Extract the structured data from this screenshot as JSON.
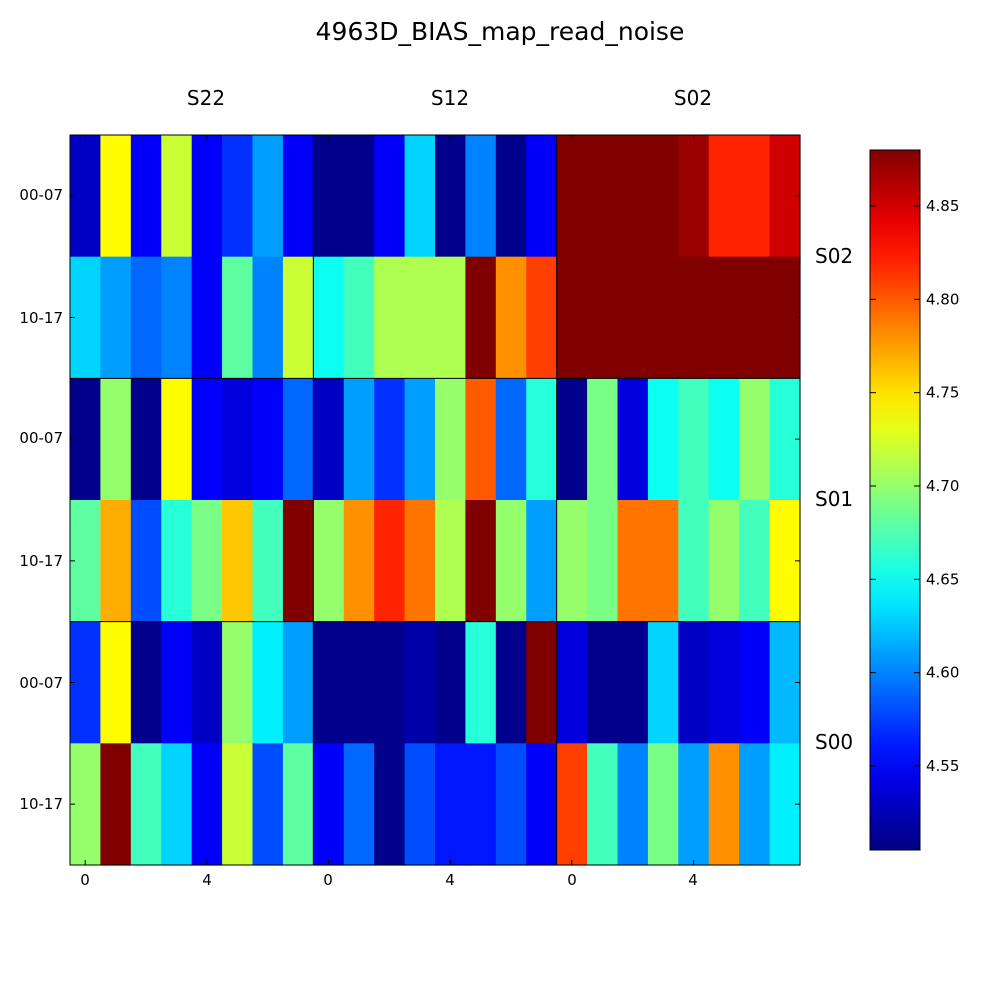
{
  "chart_data": {
    "type": "heatmap",
    "title": "4963D_BIAS_map_read_noise",
    "column_labels": [
      "S22",
      "S12",
      "S02"
    ],
    "row_labels": [
      "S02",
      "S01",
      "S00"
    ],
    "y_tick_labels": [
      "00-07",
      "10-17",
      "00-07",
      "10-17",
      "00-07",
      "10-17"
    ],
    "x_tick_labels": [
      "0",
      "4",
      "0",
      "4",
      "0",
      "4"
    ],
    "colorbar": {
      "colormap": "jet",
      "range": [
        4.505,
        4.88
      ],
      "ticks": [
        4.55,
        4.6,
        4.65,
        4.7,
        4.75,
        4.8,
        4.85
      ],
      "tick_labels": [
        "4.55",
        "4.60",
        "4.65",
        "4.70",
        "4.75",
        "4.80",
        "4.85"
      ]
    },
    "values": [
      [
        4.53,
        4.74,
        4.55,
        4.72,
        4.55,
        4.57,
        4.61,
        4.55,
        4.51,
        4.51,
        4.55,
        4.63,
        4.51,
        4.6,
        4.51,
        4.55,
        4.88,
        4.88,
        4.88,
        4.88,
        4.87,
        4.82,
        4.82,
        4.85
      ],
      [
        4.63,
        4.61,
        4.59,
        4.6,
        4.55,
        4.68,
        4.6,
        4.72,
        4.65,
        4.67,
        4.71,
        4.71,
        4.71,
        4.88,
        4.78,
        4.81,
        4.88,
        4.88,
        4.88,
        4.88,
        4.88,
        4.88,
        4.88,
        4.88
      ],
      [
        4.51,
        4.7,
        4.51,
        4.74,
        4.55,
        4.54,
        4.55,
        4.59,
        4.53,
        4.61,
        4.57,
        4.61,
        4.7,
        4.8,
        4.59,
        4.66,
        4.51,
        4.69,
        4.54,
        4.65,
        4.67,
        4.65,
        4.7,
        4.66
      ],
      [
        4.68,
        4.77,
        4.58,
        4.66,
        4.69,
        4.76,
        4.67,
        4.88,
        4.7,
        4.78,
        4.82,
        4.79,
        4.71,
        4.88,
        4.7,
        4.61,
        4.7,
        4.69,
        4.79,
        4.79,
        4.67,
        4.7,
        4.67,
        4.74
      ],
      [
        4.57,
        4.74,
        4.51,
        4.55,
        4.53,
        4.7,
        4.64,
        4.61,
        4.51,
        4.51,
        4.51,
        4.52,
        4.51,
        4.66,
        4.51,
        4.88,
        4.54,
        4.51,
        4.51,
        4.63,
        4.53,
        4.54,
        4.55,
        4.62
      ],
      [
        4.7,
        4.88,
        4.67,
        4.63,
        4.55,
        4.72,
        4.58,
        4.68,
        4.55,
        4.59,
        4.51,
        4.58,
        4.56,
        4.56,
        4.58,
        4.55,
        4.81,
        4.67,
        4.6,
        4.69,
        4.61,
        4.78,
        4.61,
        4.64
      ]
    ]
  }
}
